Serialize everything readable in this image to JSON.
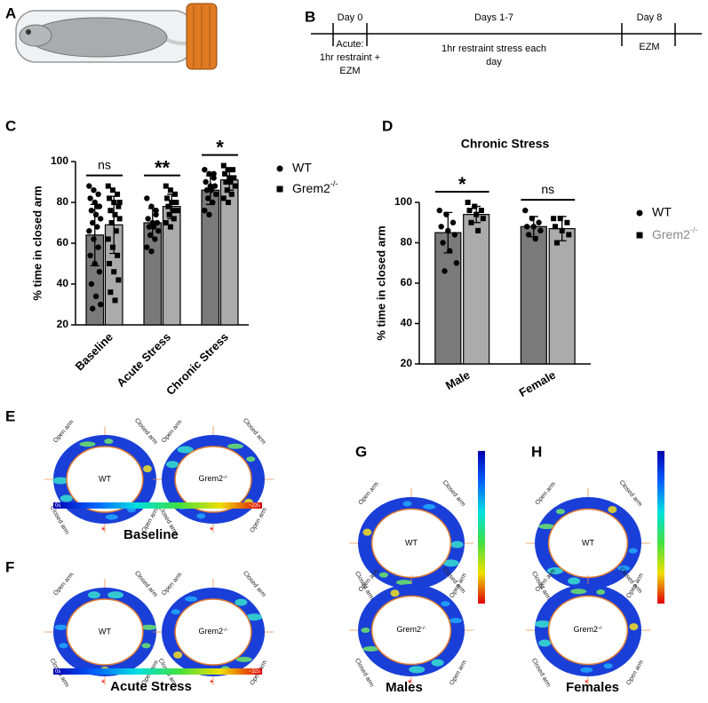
{
  "panel_labels": [
    "A",
    "B",
    "C",
    "D",
    "E",
    "F",
    "G",
    "H"
  ],
  "timeline": [
    {
      "top": "Day 0",
      "bottom": [
        "Acute:",
        "1hr restraint +",
        "EZM"
      ]
    },
    {
      "top": "Days 1-7",
      "bottom": [
        "1hr restraint stress each",
        "day"
      ]
    },
    {
      "top": "Day 8",
      "bottom": [
        "EZM"
      ]
    }
  ],
  "chart_data": [
    {
      "type": "bar",
      "ylabel": "% time in closed arm",
      "categories": [
        "Baseline",
        "Acute Stress",
        "Chronic Stress"
      ],
      "ylim": [
        20,
        100
      ],
      "yticks": [
        20,
        40,
        60,
        80,
        100
      ],
      "significance": [
        "ns",
        "**",
        "*"
      ],
      "series": [
        {
          "name": "WT",
          "marker": "circle",
          "color": "#7a7a7a",
          "values": [
            64,
            70,
            86
          ],
          "errors": [
            15,
            7,
            7
          ],
          "points": [
            [
              88,
              86,
              84,
              82,
              80,
              78,
              76,
              74,
              72,
              70,
              68,
              66,
              62,
              58,
              54,
              50,
              46,
              40,
              34,
              30,
              28,
              78
            ],
            [
              82,
              78,
              74,
              72,
              70,
              70,
              68,
              68,
              66,
              64,
              62,
              58,
              56,
              76
            ],
            [
              96,
              94,
              92,
              90,
              88,
              88,
              86,
              86,
              84,
              82,
              80,
              76,
              74,
              94
            ]
          ]
        },
        {
          "name": "Grem2",
          "superscript": "-/-",
          "marker": "square",
          "color": "#ababab",
          "values": [
            69,
            78,
            91
          ],
          "errors": [
            14,
            6,
            5
          ],
          "points": [
            [
              88,
              86,
              84,
              82,
              80,
              78,
              76,
              74,
              72,
              70,
              66,
              62,
              58,
              54,
              50,
              46,
              42,
              36,
              32,
              80
            ],
            [
              88,
              86,
              84,
              82,
              80,
              80,
              78,
              76,
              76,
              74,
              72,
              70,
              68
            ],
            [
              98,
              96,
              96,
              94,
              92,
              92,
              90,
              90,
              88,
              86,
              84,
              82,
              80
            ]
          ]
        }
      ]
    },
    {
      "type": "bar",
      "title": "Chronic Stress",
      "ylabel": "% time in closed arm",
      "categories": [
        "Male",
        "Female"
      ],
      "ylim": [
        20,
        100
      ],
      "yticks": [
        20,
        40,
        60,
        80,
        100
      ],
      "significance": [
        "*",
        "ns"
      ],
      "series": [
        {
          "name": "WT",
          "marker": "circle",
          "color": "#7a7a7a",
          "values": [
            85,
            88
          ],
          "errors": [
            10,
            5
          ],
          "points": [
            [
              96,
              94,
              90,
              88,
              86,
              84,
              80,
              76,
              70,
              66
            ],
            [
              96,
              92,
              90,
              88,
              88,
              86,
              84,
              82
            ]
          ]
        },
        {
          "name": "Grem2",
          "superscript": "-/-",
          "marker": "square",
          "color": "#ababab",
          "values": [
            94,
            87
          ],
          "errors": [
            4,
            6
          ],
          "points": [
            [
              100,
              98,
              96,
              96,
              94,
              92,
              90,
              86
            ],
            [
              92,
              92,
              90,
              88,
              86,
              84,
              80
            ]
          ]
        }
      ]
    }
  ],
  "heatmaps": {
    "arm_labels": [
      "Open arm",
      "Closed arm",
      "Closed arm",
      "Open arm"
    ],
    "genotypes": [
      "WT",
      "Grem2"
    ],
    "superscript": "-/-",
    "star": "*",
    "panels": [
      {
        "title": "Baseline",
        "scale": [
          "0s",
          "~23s"
        ]
      },
      {
        "title": "Acute Stress",
        "scale": [
          "0s",
          "~32s"
        ]
      },
      {
        "title": "Males"
      },
      {
        "title": "Females"
      }
    ]
  }
}
